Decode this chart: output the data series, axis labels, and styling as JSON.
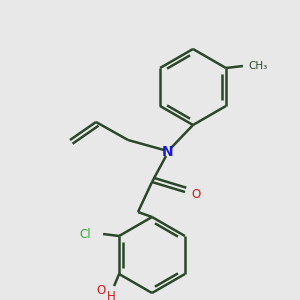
{
  "background_color": "#e8e8e8",
  "bond_color": "#2a472a",
  "n_color": "#1a1acc",
  "o_color": "#cc1a1a",
  "cl_color": "#3aaa3a",
  "lw": 1.8,
  "figsize": [
    3.0,
    3.0
  ],
  "dpi": 100,
  "xlim": [
    0,
    300
  ],
  "ylim": [
    0,
    300
  ]
}
